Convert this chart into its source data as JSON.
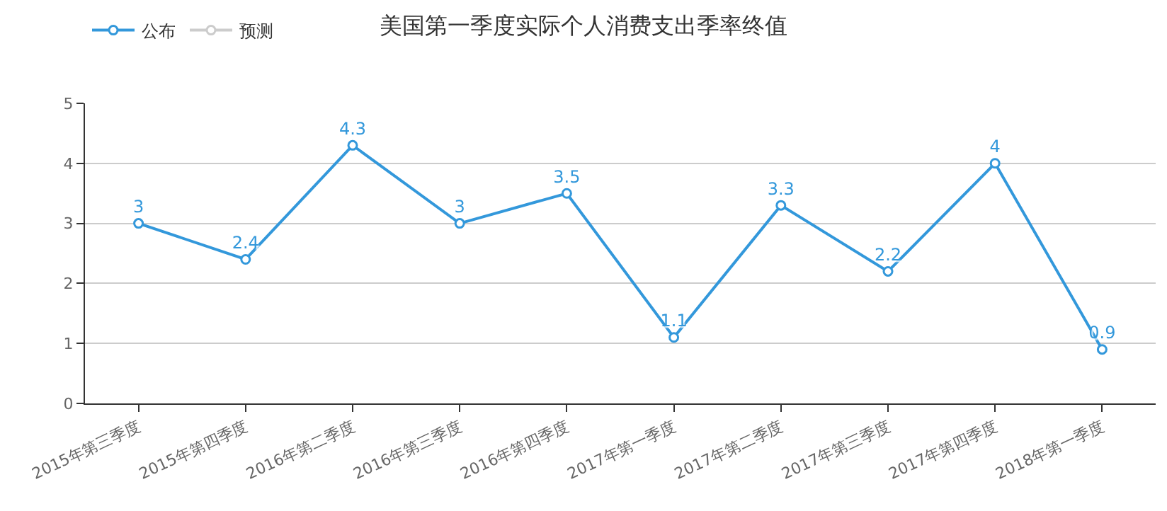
{
  "chart_data": {
    "type": "line",
    "title": "美国第一季度实际个人消费支出季率终值",
    "categories": [
      "2015年第三季度",
      "2015年第四季度",
      "2016年第二季度",
      "2016年第三季度",
      "2016年第四季度",
      "2017年第一季度",
      "2017年第二季度",
      "2017年第三季度",
      "2017年第四季度",
      "2018年第一季度"
    ],
    "series": [
      {
        "name": "公布",
        "color": "#3398db",
        "values": [
          3,
          2.4,
          4.3,
          3,
          3.5,
          1.1,
          3.3,
          2.2,
          4,
          0.9
        ]
      },
      {
        "name": "预测",
        "color": "#cccccc",
        "values": [
          null,
          null,
          null,
          null,
          null,
          null,
          null,
          null,
          null,
          null
        ]
      }
    ],
    "ylim": [
      0,
      5
    ],
    "yticks": [
      0,
      1,
      2,
      3,
      4,
      5
    ],
    "grid": "y",
    "legend": "top left",
    "marker": "circle",
    "line_style": "solid",
    "data_labels": true
  }
}
